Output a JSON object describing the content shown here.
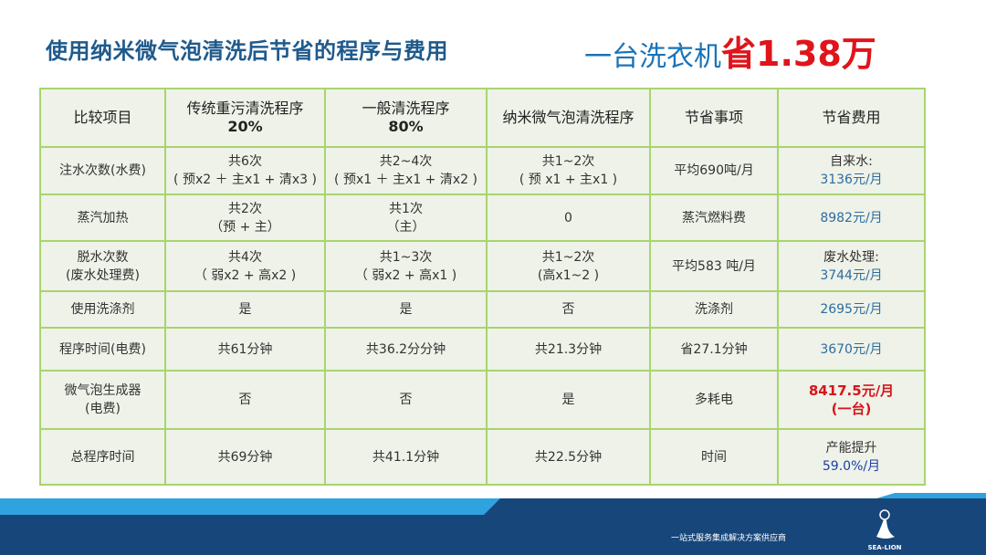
{
  "title": "使用纳米微气泡清洗后节省的程序与费用",
  "headline": {
    "prefix": "一台洗衣机",
    "highlight": "省1.38万"
  },
  "table": {
    "headers": [
      {
        "line1": "比较项目",
        "line2": ""
      },
      {
        "line1": "传统重污清洗程序",
        "line2": "20%"
      },
      {
        "line1": "一般清洗程序",
        "line2": "80%"
      },
      {
        "line1": "纳米微气泡清洗程序",
        "line2": ""
      },
      {
        "line1": "节省事项",
        "line2": ""
      },
      {
        "line1": "节省费用",
        "line2": ""
      }
    ],
    "rows": [
      {
        "item": [
          "注水次数(水费)"
        ],
        "traditional": [
          "共6次",
          "( 预x2 ＋ 主x1 + 清x3 )"
        ],
        "general": [
          "共2~4次",
          "( 预x1 ＋ 主x1 + 清x2 )"
        ],
        "nano": [
          "共1~2次",
          "( 预 x1 + 主x1 )"
        ],
        "saving_item": [
          "平均690吨/月"
        ],
        "saving_cost": {
          "label": "自来水:",
          "value": "3136元/月"
        }
      },
      {
        "item": [
          "蒸汽加热"
        ],
        "traditional": [
          "共2次",
          "（预 + 主）"
        ],
        "general": [
          "共1次",
          "（主）"
        ],
        "nano": [
          "0"
        ],
        "saving_item": [
          "蒸汽燃料费"
        ],
        "saving_cost": {
          "label": "",
          "value": "8982元/月"
        }
      },
      {
        "item": [
          "脱水次数",
          "(废水处理费)"
        ],
        "traditional": [
          "共4次",
          "（ 弱x2 + 高x2 )"
        ],
        "general": [
          "共1~3次",
          "（ 弱x2 + 高x1 )"
        ],
        "nano": [
          "共1~2次",
          "(高x1~2 )"
        ],
        "saving_item": [
          "平均583 吨/月"
        ],
        "saving_cost": {
          "label": "废水处理:",
          "value": "3744元/月"
        }
      },
      {
        "item": [
          "使用洗涤剂"
        ],
        "traditional": [
          "是"
        ],
        "general": [
          "是"
        ],
        "nano": [
          "否"
        ],
        "saving_item": [
          "洗涤剂"
        ],
        "saving_cost": {
          "label": "",
          "value": "2695元/月"
        }
      },
      {
        "item": [
          "程序时间(电费)"
        ],
        "traditional": [
          "共61分钟"
        ],
        "general": [
          "共36.2分分钟"
        ],
        "nano": [
          "共21.3分钟"
        ],
        "saving_item": [
          "省27.1分钟"
        ],
        "saving_cost": {
          "label": "",
          "value": "3670元/月"
        }
      },
      {
        "item": [
          "微气泡生成器",
          "(电费)"
        ],
        "traditional": [
          "否"
        ],
        "general": [
          "否"
        ],
        "nano": [
          "是"
        ],
        "saving_item": [
          "多耗电"
        ],
        "saving_cost": {
          "label": "",
          "value": "8417.5元/月",
          "note": "(一台)"
        }
      },
      {
        "item": [
          "总程序时间"
        ],
        "traditional": [
          "共69分钟"
        ],
        "general": [
          "共41.1分钟"
        ],
        "nano": [
          "共22.5分钟"
        ],
        "saving_item": [
          "时间"
        ],
        "saving_cost": {
          "label": "产能提升",
          "value": "59.0%/月"
        }
      }
    ]
  },
  "footer": {
    "slogan": "一站式服务集成解决方案供应商",
    "logo_text": "SEA-LION"
  },
  "colors": {
    "title": "#1f5a8c",
    "headline_blue": "#1a73b8",
    "highlight_red": "#e0141b",
    "border": "#a9d46e",
    "cell_bg": "#eef2e8",
    "footer_dark": "#17467a",
    "footer_light": "#2ea3e0"
  }
}
